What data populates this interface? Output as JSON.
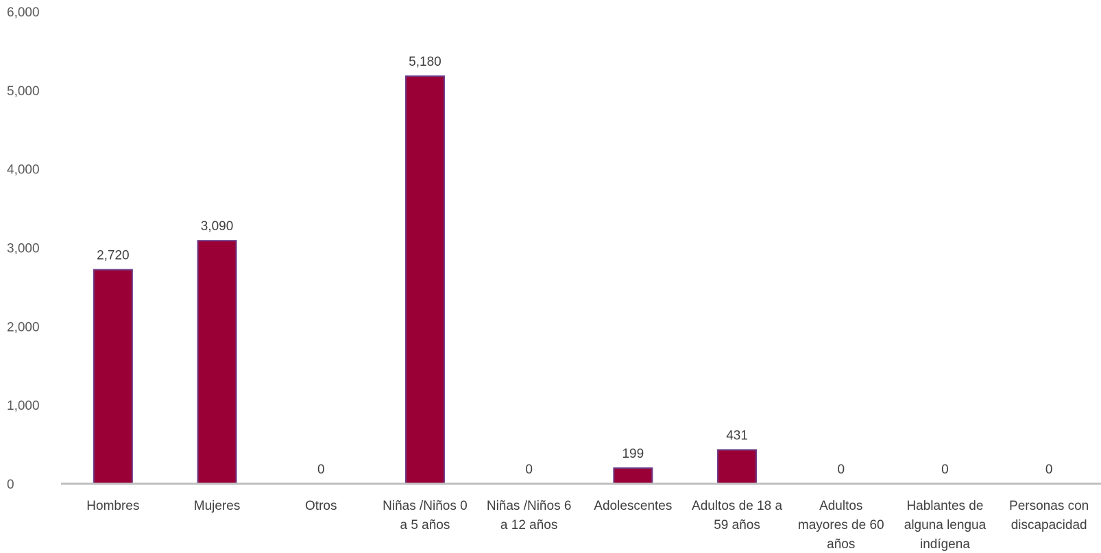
{
  "chart_data": {
    "type": "bar",
    "categories": [
      [
        "Hombres"
      ],
      [
        "Mujeres"
      ],
      [
        "Otros"
      ],
      [
        "Niñas /Niños 0",
        "a 5 años"
      ],
      [
        "Niñas /Niños 6",
        "a 12 años"
      ],
      [
        "Adolescentes"
      ],
      [
        "Adultos de 18 a",
        "59 años"
      ],
      [
        "Adultos",
        "mayores de 60",
        "años"
      ],
      [
        "Hablantes de",
        "alguna lengua",
        "indígena"
      ],
      [
        "Personas con",
        "discapacidad"
      ]
    ],
    "values": [
      2720,
      3090,
      0,
      5180,
      0,
      199,
      431,
      0,
      0,
      0
    ],
    "data_labels": [
      "2,720",
      "3,090",
      "0",
      "5,180",
      "0",
      "199",
      "431",
      "0",
      "0",
      "0"
    ],
    "y_ticks": [
      "0",
      "1,000",
      "2,000",
      "3,000",
      "4,000",
      "5,000",
      "6,000"
    ],
    "ylim": [
      0,
      6000
    ],
    "grid": false,
    "legend": "none",
    "colors": {
      "bar_fill": "#9a0036",
      "bar_edge": "#6b3b86",
      "axis": "#bfbfbf"
    }
  }
}
